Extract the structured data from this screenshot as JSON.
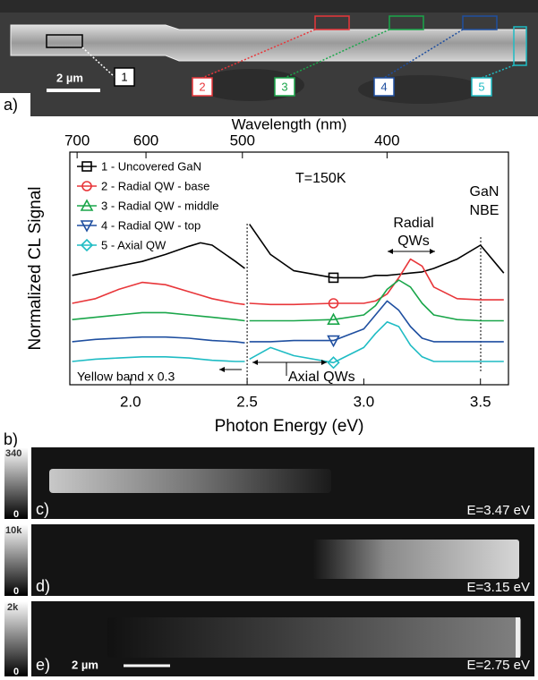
{
  "chart_data": {
    "type": "line",
    "panel_label": "b)",
    "x_label": "Photon Energy (eV)",
    "y_label": "Normalized CL Signal",
    "x2_label": "Wavelength (nm)",
    "xlim": [
      1.74,
      3.62
    ],
    "ylim": [
      0,
      10
    ],
    "xticks": [
      {
        "value": 2,
        "label": "2.0"
      },
      2.5,
      {
        "value": 3,
        "label": "3.0"
      },
      3.5
    ],
    "x2ticks": [
      700,
      600,
      500,
      400
    ],
    "legend": "upper left",
    "annotations": {
      "temperature": "T=150K",
      "radial_qws": [
        "Radial",
        "QWs"
      ],
      "gan_nbe": [
        "GaN",
        "NBE"
      ],
      "yellow_band": "Yellow band x 0.3",
      "axial_qws": "Axial QWs"
    },
    "x": [
      1.75,
      1.85,
      1.95,
      2.05,
      2.15,
      2.25,
      2.3,
      2.35,
      2.45,
      2.49,
      2.5,
      2.51,
      2.6,
      2.7,
      2.87,
      3.0,
      3.05,
      3.1,
      3.15,
      3.2,
      3.25,
      3.3,
      3.4,
      3.5,
      3.6
    ],
    "series": [
      {
        "name": "1 - Uncovered GaN",
        "color": "#000000",
        "marker": "square",
        "values": [
          4.7,
          4.9,
          5.1,
          5.3,
          5.6,
          5.95,
          6.1,
          6.0,
          5.3,
          5.0,
          null,
          6.9,
          5.6,
          4.9,
          4.6,
          4.6,
          4.7,
          4.7,
          4.75,
          4.8,
          4.85,
          5.0,
          5.4,
          6.0,
          4.8
        ]
      },
      {
        "name": "2 - Radial QW - base",
        "color": "#e8363a",
        "marker": "circle",
        "values": [
          3.5,
          3.7,
          4.1,
          4.4,
          4.3,
          4.0,
          3.85,
          3.7,
          3.5,
          3.45,
          null,
          3.5,
          3.45,
          3.45,
          3.5,
          3.5,
          3.6,
          3.9,
          4.6,
          5.4,
          5.1,
          4.2,
          3.7,
          3.65,
          3.65
        ]
      },
      {
        "name": "3 - Radial QW - middle",
        "color": "#1aa64a",
        "marker": "triangle-up",
        "values": [
          2.8,
          2.9,
          3.0,
          3.1,
          3.1,
          3.0,
          2.95,
          2.9,
          2.8,
          2.75,
          null,
          2.75,
          2.75,
          2.75,
          2.8,
          3.0,
          3.4,
          4.1,
          4.5,
          4.2,
          3.5,
          3.0,
          2.8,
          2.75,
          2.75
        ]
      },
      {
        "name": "4 - Radial QW - top",
        "color": "#1f4fa0",
        "marker": "triangle-down",
        "values": [
          1.85,
          1.95,
          2.0,
          2.05,
          2.05,
          2.0,
          1.95,
          1.9,
          1.85,
          1.8,
          null,
          1.85,
          1.85,
          1.9,
          1.9,
          2.4,
          3.0,
          3.6,
          3.2,
          2.5,
          2.0,
          1.85,
          1.85,
          1.85,
          1.85
        ]
      },
      {
        "name": "5 - Axial QW",
        "color": "#1fbcc4",
        "marker": "diamond",
        "values": [
          1.0,
          1.1,
          1.15,
          1.2,
          1.2,
          1.15,
          1.1,
          1.05,
          1.0,
          1.0,
          null,
          1.1,
          1.6,
          1.25,
          0.95,
          1.6,
          2.2,
          2.7,
          2.5,
          1.7,
          1.2,
          1.0,
          1.0,
          1.0,
          1.0
        ]
      }
    ]
  },
  "panel_a": {
    "label": "a)",
    "scale_bar": "2 µm",
    "regions": [
      "1",
      "2",
      "3",
      "4",
      "5"
    ]
  },
  "cl_maps": [
    {
      "label": "c)",
      "energy": "E=3.47 eV",
      "colorbar": [
        "340",
        "0"
      ]
    },
    {
      "label": "d)",
      "energy": "E=3.15 eV",
      "colorbar": [
        "10k",
        "0"
      ]
    },
    {
      "label": "e)",
      "energy": "E=2.75 eV",
      "colorbar": [
        "2k",
        "0"
      ],
      "scale_bar": "2 µm"
    }
  ]
}
